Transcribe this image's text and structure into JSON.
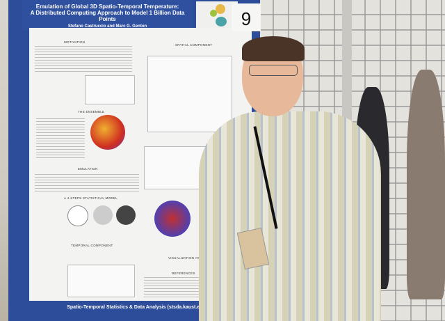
{
  "poster": {
    "title_line1": "Emulation of Global 3D Spatio-Temporal Temperature:",
    "title_line2": "A Distributed Computing Approach to Model 1 Billion Data Points",
    "authors": "Stefano Castruccio and Marc G. Genton",
    "board_number": "9",
    "sections": [
      "MOTIVATION",
      "SPATIAL COMPONENT",
      "THE ENSEMBLE",
      "EMULATION",
      "A 4-STEPS STATISTICAL MODEL",
      "TEMPORAL COMPONENT",
      "VISUALIZATION AT",
      "REFERENCES"
    ],
    "footer": "Spatio-Temporal Statistics & Data Analysis (stsda.kaust.edu.sa)"
  },
  "colors": {
    "poster_blue": "#2d4d9a",
    "shirt": "#d5d2b8"
  }
}
